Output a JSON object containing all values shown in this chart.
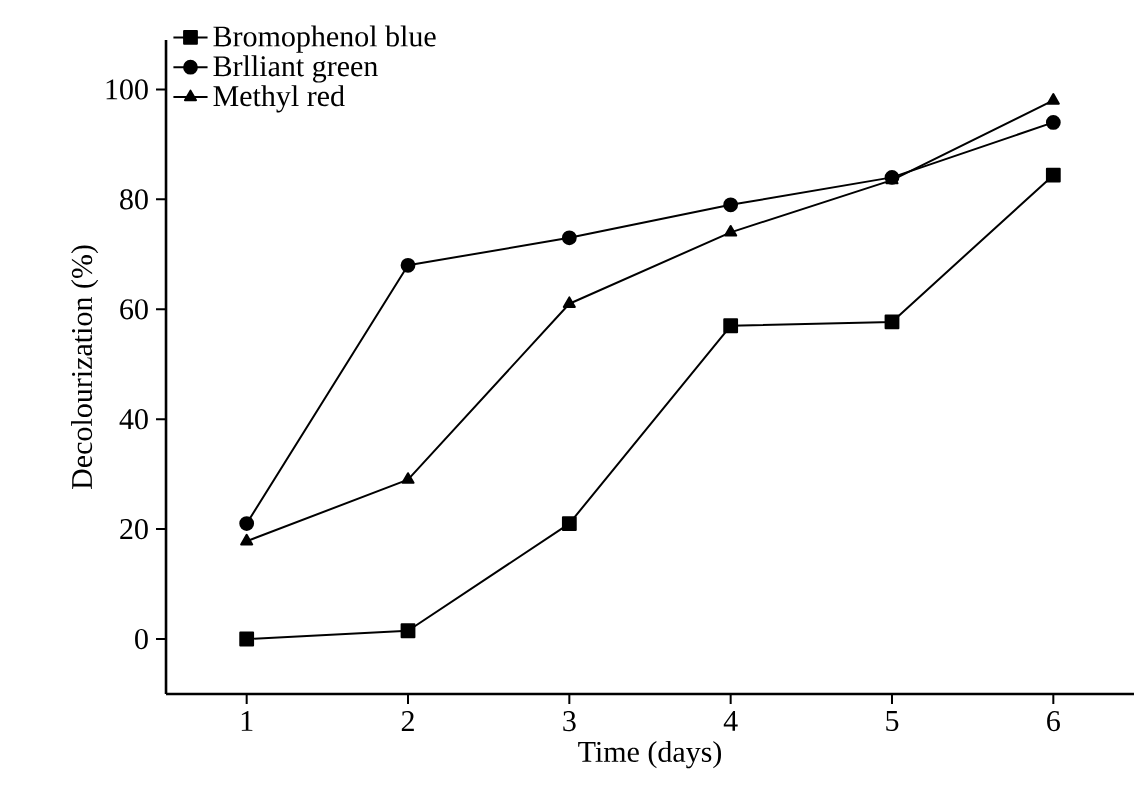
{
  "chart_data": {
    "type": "line",
    "xlabel": "Time (days)",
    "ylabel": "Decolourization (%)",
    "x": [
      1,
      2,
      3,
      4,
      5,
      6
    ],
    "series": [
      {
        "name": "Bromophenol blue",
        "color": "#000000",
        "marker": "square",
        "values": [
          0,
          1.5,
          21,
          57,
          57.7,
          84.4
        ]
      },
      {
        "name": "Brlliant green",
        "color": "#000000",
        "marker": "circle",
        "values": [
          21,
          68,
          73,
          79,
          84,
          94
        ]
      },
      {
        "name": "Methyl red",
        "color": "#000000",
        "marker": "triangle",
        "values": [
          17.8,
          29,
          61,
          74,
          83.5,
          98
        ]
      }
    ],
    "xlim": [
      0.5,
      6.5
    ],
    "ylim": [
      -10,
      109
    ],
    "xticks": [
      1,
      2,
      3,
      4,
      5,
      6
    ],
    "yticks": [
      0,
      20,
      40,
      60,
      80,
      100
    ],
    "legend": "top left",
    "grid": false,
    "line_style": "solid"
  }
}
